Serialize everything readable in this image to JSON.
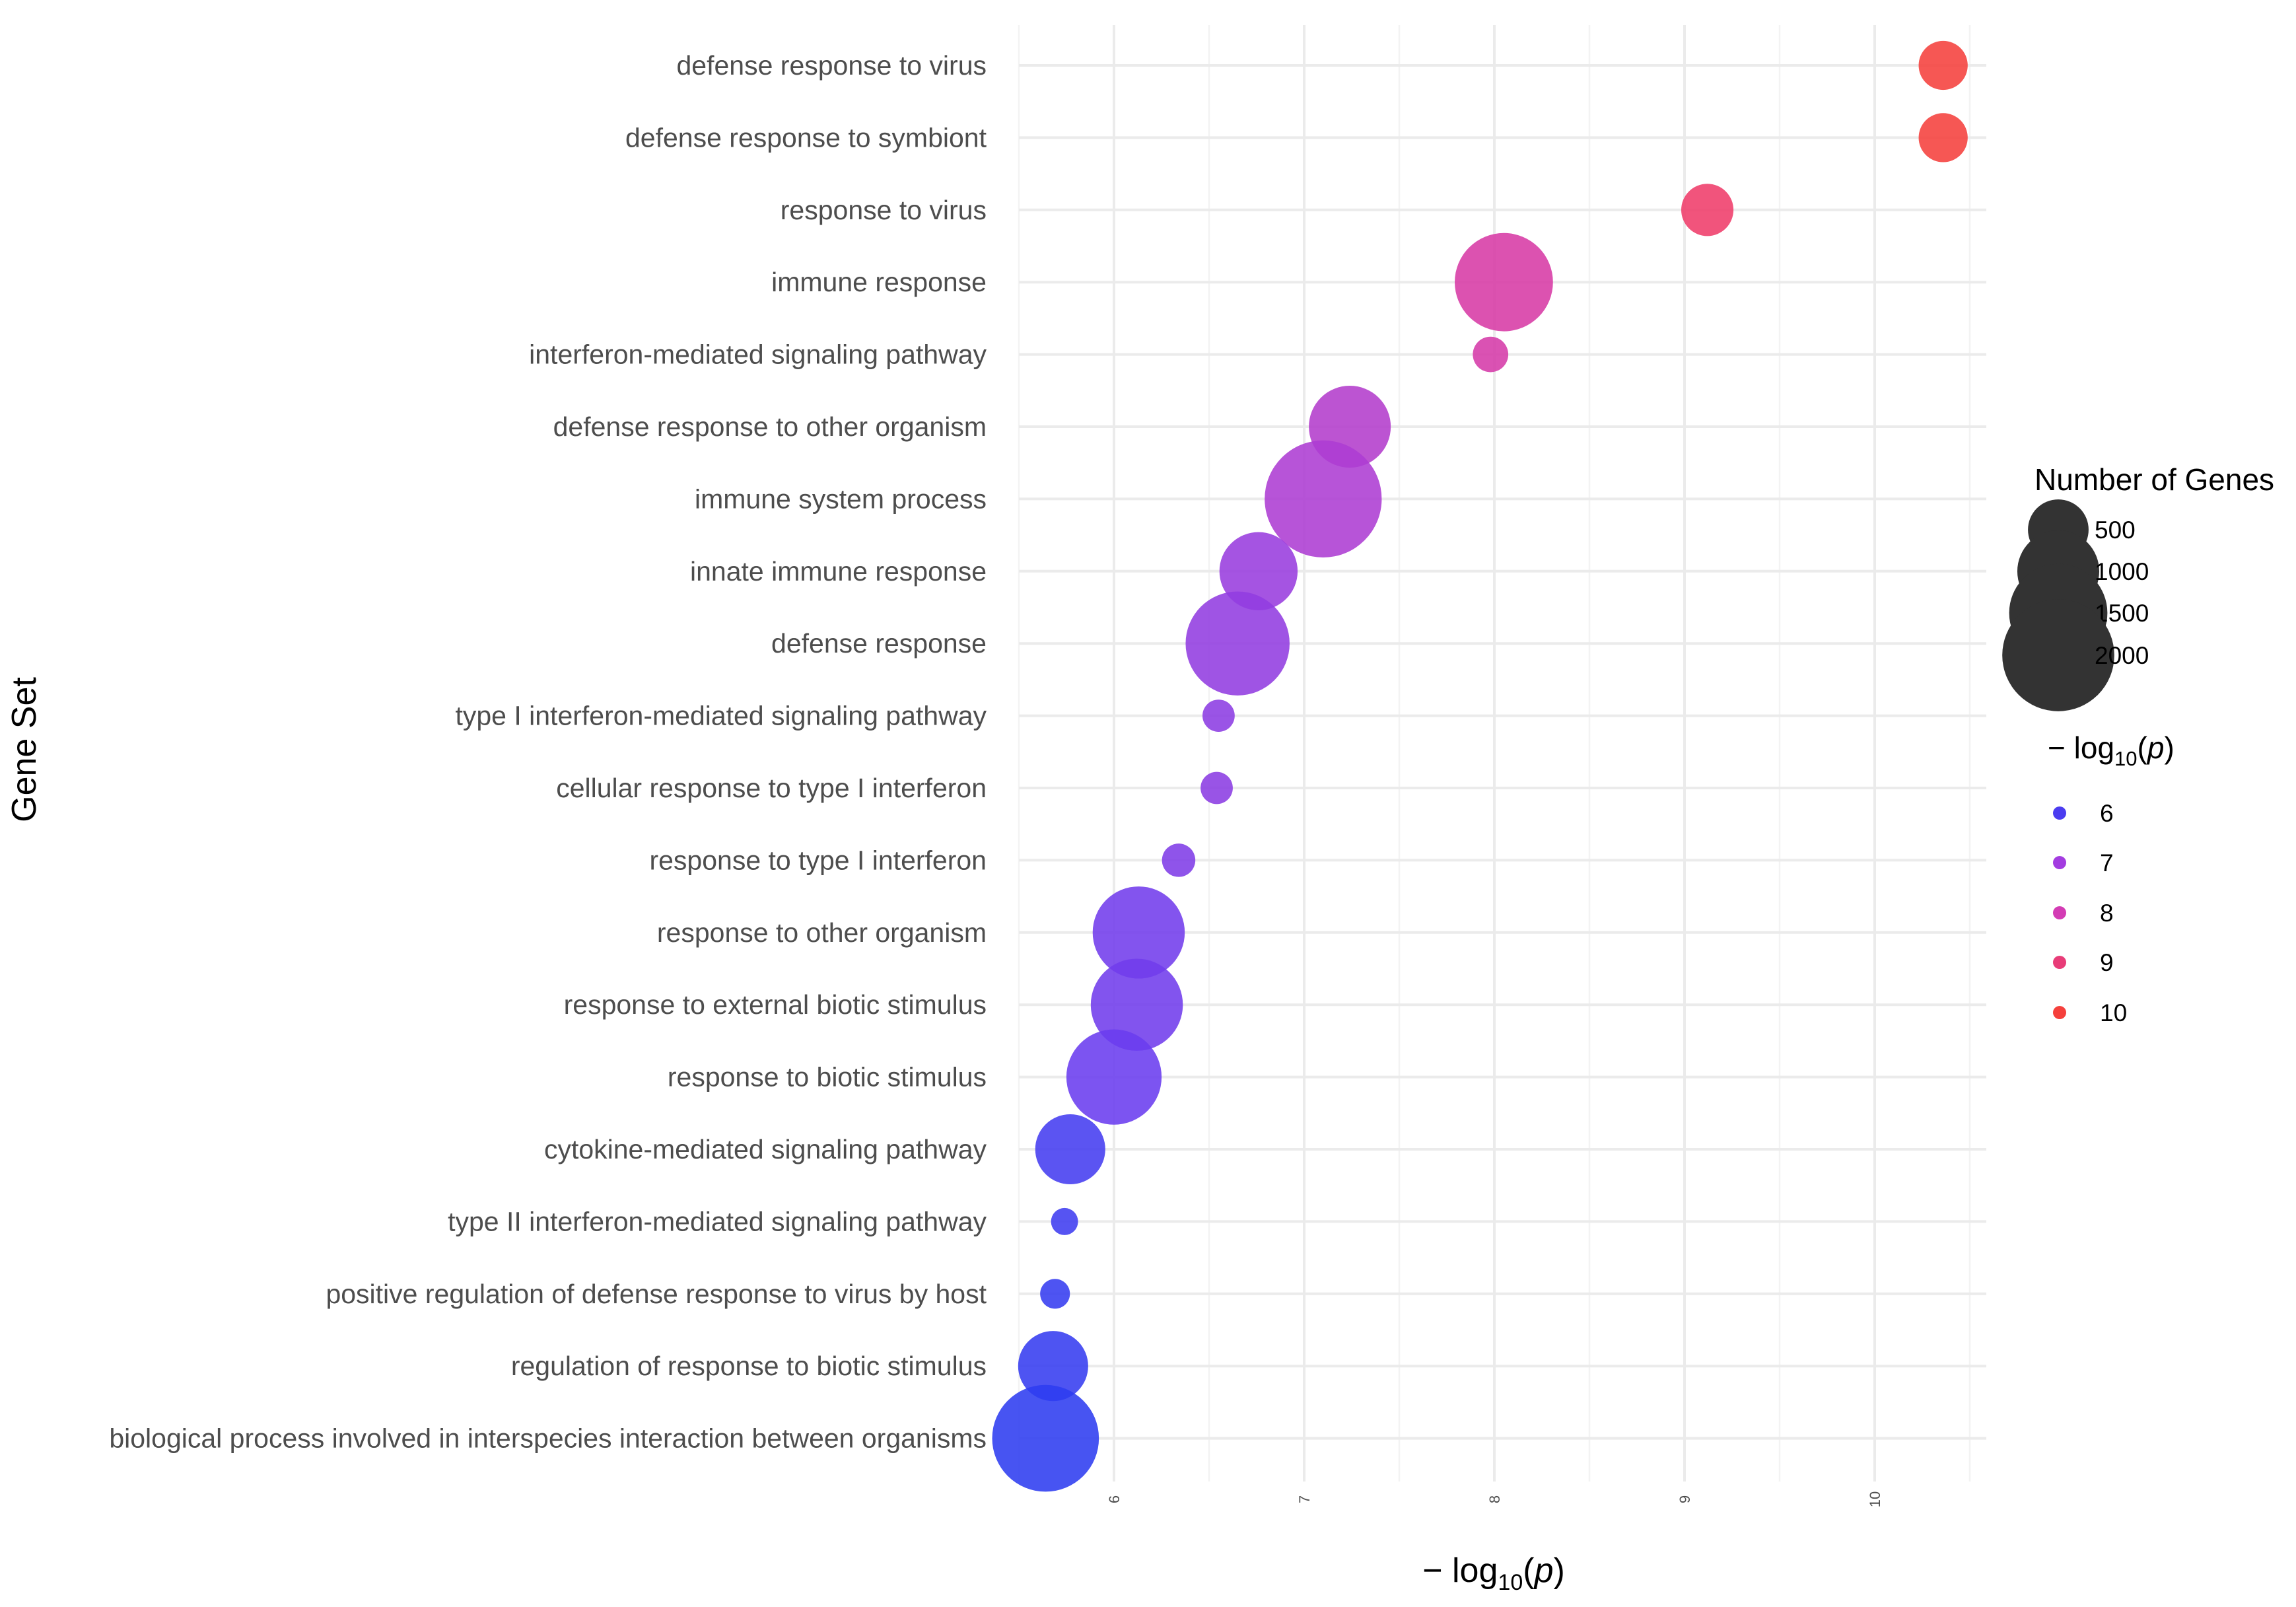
{
  "chart_data": {
    "type": "scatter",
    "title": "",
    "xlabel": {
      "prefix": "− log",
      "sub": "10",
      "open": "(",
      "var": "p",
      "close": ")"
    },
    "ylabel": "Gene Set",
    "xlim": [
      5.5,
      10.6
    ],
    "xticks": [
      6,
      7,
      8,
      9,
      10
    ],
    "grid": true,
    "points": [
      {
        "label": "defense response to virus",
        "x": 10.36,
        "genes": 300
      },
      {
        "label": "defense response to symbiont",
        "x": 10.36,
        "genes": 300
      },
      {
        "label": "response to virus",
        "x": 9.12,
        "genes": 350
      },
      {
        "label": "immune response",
        "x": 8.05,
        "genes": 1500
      },
      {
        "label": "interferon-mediated signaling pathway",
        "x": 7.98,
        "genes": 130
      },
      {
        "label": "defense response to other organism",
        "x": 7.24,
        "genes": 1000
      },
      {
        "label": "immune system process",
        "x": 7.1,
        "genes": 2200
      },
      {
        "label": "innate immune response",
        "x": 6.76,
        "genes": 900
      },
      {
        "label": "defense response",
        "x": 6.65,
        "genes": 1700
      },
      {
        "label": "type I interferon-mediated signaling pathway",
        "x": 6.55,
        "genes": 100
      },
      {
        "label": "cellular response to type I interferon",
        "x": 6.54,
        "genes": 100
      },
      {
        "label": "response to type I interferon",
        "x": 6.34,
        "genes": 110
      },
      {
        "label": "response to other organism",
        "x": 6.13,
        "genes": 1300
      },
      {
        "label": "response to external biotic stimulus",
        "x": 6.12,
        "genes": 1300
      },
      {
        "label": "response to biotic stimulus",
        "x": 6.0,
        "genes": 1400
      },
      {
        "label": "cytokine-mediated signaling pathway",
        "x": 5.77,
        "genes": 700
      },
      {
        "label": "type II interferon-mediated signaling pathway",
        "x": 5.74,
        "genes": 60
      },
      {
        "label": "positive regulation of defense response to virus by host",
        "x": 5.69,
        "genes": 80
      },
      {
        "label": "regulation of response to biotic stimulus",
        "x": 5.68,
        "genes": 700
      },
      {
        "label": "biological process involved in interspecies interaction between organisms",
        "x": 5.64,
        "genes": 1800
      }
    ],
    "size_legend": {
      "title": "Number of Genes",
      "entries": [
        500,
        1000,
        1500,
        2000
      ],
      "color": "#333333"
    },
    "color_legend": {
      "title": {
        "prefix": "− log",
        "sub": "10",
        "open": "(",
        "var": "p",
        "close": ")"
      },
      "entries": [
        6,
        7,
        8,
        9,
        10
      ],
      "colors": [
        "#4b3cf0",
        "#a33ce0",
        "#d33cb4",
        "#e83c78",
        "#f5403c"
      ]
    },
    "color_scale": {
      "stops": [
        {
          "value": 5.64,
          "color": "#2e3cf0"
        },
        {
          "value": 6.0,
          "color": "#6a3cef"
        },
        {
          "value": 7.0,
          "color": "#a83cd8"
        },
        {
          "value": 8.0,
          "color": "#d63aa8"
        },
        {
          "value": 9.0,
          "color": "#ee3c6e"
        },
        {
          "value": 10.36,
          "color": "#f5403c"
        }
      ]
    }
  }
}
